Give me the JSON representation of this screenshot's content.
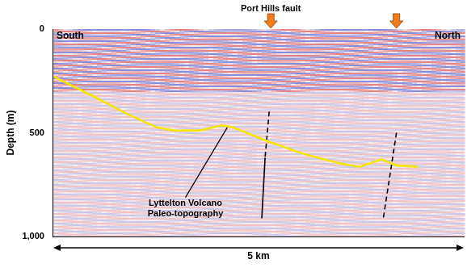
{
  "chart_data": {
    "type": "line",
    "x_label": "5 km",
    "y_label": "Depth (m)",
    "xlim": [
      0,
      5
    ],
    "ylim": [
      0,
      1000
    ],
    "yticks": [
      0,
      500,
      1000
    ],
    "grid": false,
    "tick_labels": "y",
    "end_labels": {
      "left": "South",
      "right": "North"
    },
    "series": [
      {
        "color": "#f5e600",
        "line_style": "solid",
        "marker": "none",
        "x": [
          0.0,
          0.46,
          0.9,
          1.26,
          1.48,
          1.79,
          2.05,
          2.19,
          2.58,
          3.03,
          3.47,
          3.73,
          4.0,
          4.18,
          4.44
        ],
        "values": [
          228,
          318,
          409,
          474,
          489,
          489,
          464,
          474,
          536,
          599,
          646,
          664,
          628,
          657,
          664
        ]
      },
      {
        "color": "#000000",
        "line_style": "dashed",
        "marker": "none",
        "x": [
          2.63,
          2.58
        ],
        "values": [
          398,
          620
        ]
      },
      {
        "color": "#000000",
        "line_style": "solid",
        "marker": "none",
        "x": [
          2.58,
          2.54
        ],
        "values": [
          620,
          912
        ]
      },
      {
        "color": "#000000",
        "line_style": "dashed",
        "marker": "none",
        "x": [
          4.18,
          4.02
        ],
        "values": [
          500,
          912
        ]
      }
    ],
    "annotations": [
      {
        "text": "Port Hills fault",
        "arrows_x": [
          2.65,
          4.18
        ],
        "color": "#f07c1a"
      },
      {
        "text": [
          "Lyttelton Volcano",
          "Paleo-topography"
        ],
        "x": 1.61,
        "y": 870,
        "points_to": {
          "x": 2.12,
          "y": 474
        }
      }
    ]
  }
}
